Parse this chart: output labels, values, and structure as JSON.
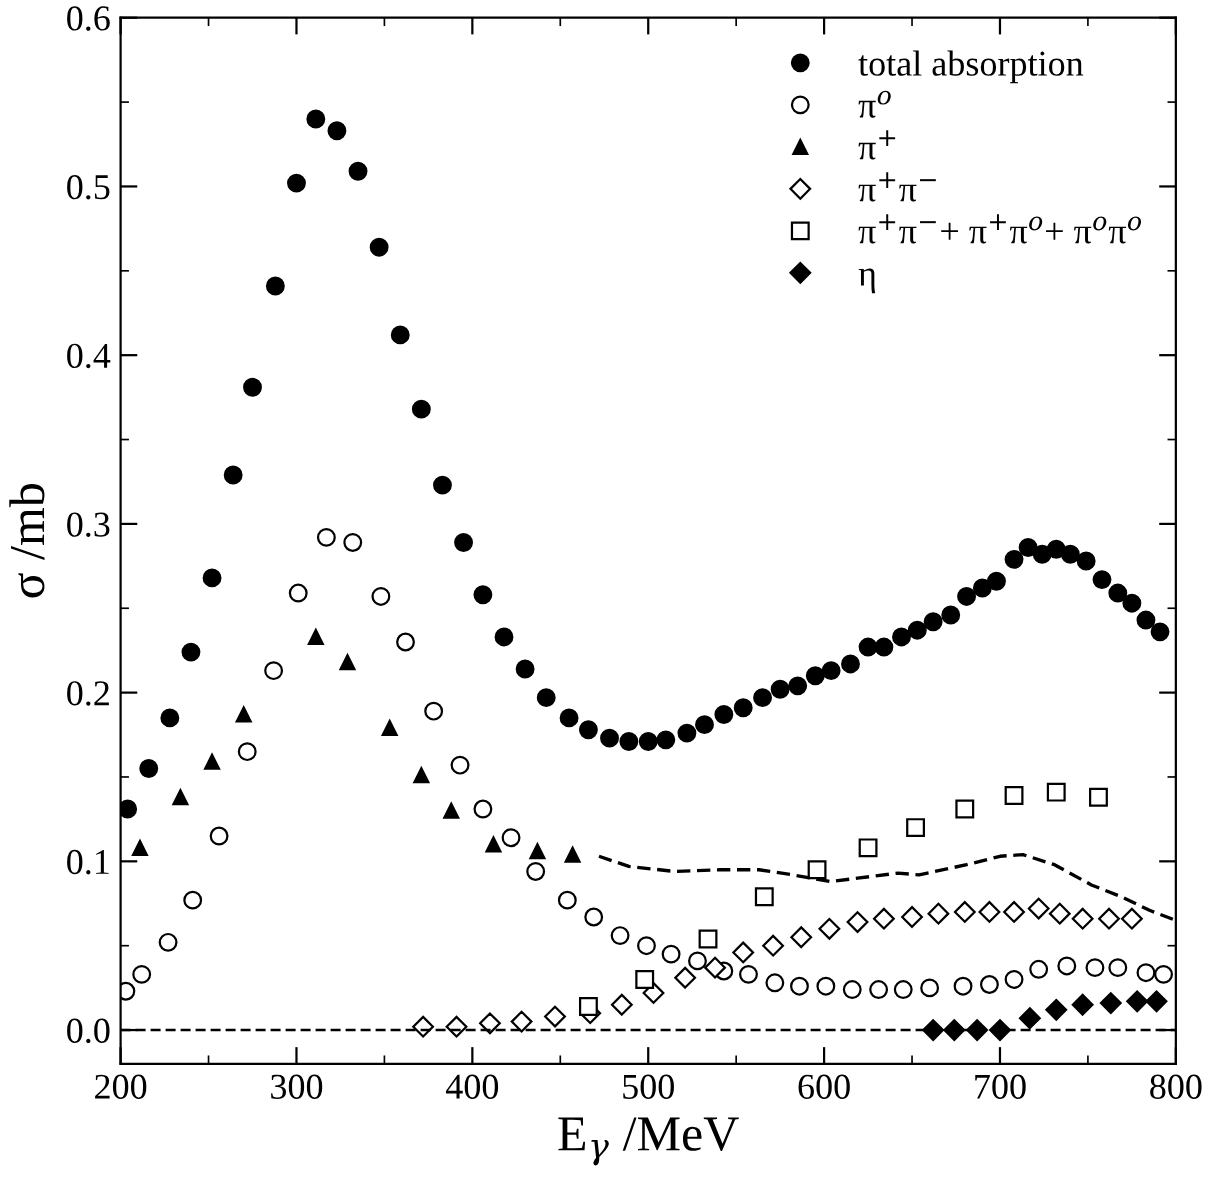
{
  "chart_data": {
    "type": "scatter",
    "xlabel": "E$_{γ}$ /MeV",
    "ylabel": "σ /mb",
    "xlim": [
      200,
      800
    ],
    "xticks": [
      200,
      300,
      400,
      500,
      600,
      700,
      800
    ],
    "ylim": [
      -0.02,
      0.6
    ],
    "yticks": [
      {
        "value": 0,
        "label": "0.0"
      },
      0.1,
      0.2,
      0.3,
      0.4,
      0.5,
      0.6
    ],
    "grid": false,
    "legend": "top right",
    "ref_lines": [
      {
        "axis": "y",
        "value": 0,
        "line_style": "dashed",
        "color": "#000000"
      }
    ],
    "series": [
      {
        "name": "total absorption",
        "color": "#000000",
        "marker": "circle",
        "x": [
          204,
          216,
          228,
          240,
          252,
          264,
          275,
          288,
          300,
          311,
          323,
          335,
          347,
          359,
          371,
          383,
          395,
          406,
          418,
          430,
          442,
          455,
          466,
          478,
          489,
          500,
          510,
          522,
          532,
          543,
          554,
          565,
          575,
          585,
          595,
          604,
          615,
          625,
          634,
          644,
          653,
          662,
          672,
          681,
          690,
          698,
          708,
          716,
          724,
          732,
          740,
          749,
          758,
          767,
          775,
          783,
          791
        ],
        "values": [
          0.131,
          0.155,
          0.185,
          0.224,
          0.268,
          0.329,
          0.381,
          0.441,
          0.502,
          0.54,
          0.533,
          0.509,
          0.464,
          0.412,
          0.368,
          0.323,
          0.289,
          0.258,
          0.233,
          0.214,
          0.197,
          0.185,
          0.178,
          0.173,
          0.171,
          0.171,
          0.172,
          0.176,
          0.181,
          0.187,
          0.191,
          0.197,
          0.202,
          0.204,
          0.21,
          0.213,
          0.217,
          0.227,
          0.227,
          0.233,
          0.237,
          0.242,
          0.246,
          0.257,
          0.262,
          0.266,
          0.279,
          0.286,
          0.282,
          0.285,
          0.282,
          0.278,
          0.267,
          0.259,
          0.253,
          0.243,
          0.236
        ]
      },
      {
        "name": "π$^{o}$",
        "color": "#000000",
        "marker": "circle",
        "x": [
          203,
          212,
          227,
          241,
          256,
          272,
          287,
          301,
          317,
          332,
          348,
          362,
          378,
          393,
          406,
          422,
          436,
          454,
          469,
          484,
          499,
          513,
          528,
          543,
          557,
          572,
          586,
          601,
          616,
          631,
          645,
          660,
          679,
          694,
          708,
          722,
          738,
          754,
          767,
          783,
          793
        ],
        "values": [
          0.023,
          0.033,
          0.052,
          0.077,
          0.115,
          0.165,
          0.213,
          0.259,
          0.292,
          0.289,
          0.257,
          0.23,
          0.189,
          0.157,
          0.131,
          0.114,
          0.094,
          0.077,
          0.067,
          0.056,
          0.05,
          0.045,
          0.041,
          0.035,
          0.033,
          0.028,
          0.026,
          0.026,
          0.024,
          0.024,
          0.024,
          0.025,
          0.026,
          0.027,
          0.03,
          0.036,
          0.038,
          0.037,
          0.037,
          0.034,
          0.033
        ]
      },
      {
        "name": "π$^{+}$",
        "color": "#000000",
        "marker": "triangle",
        "x": [
          211,
          234,
          252,
          270,
          311,
          329,
          353,
          371,
          388,
          412,
          437,
          457
        ],
        "values": [
          0.108,
          0.138,
          0.159,
          0.187,
          0.233,
          0.218,
          0.179,
          0.151,
          0.13,
          0.11,
          0.106,
          0.104
        ]
      },
      {
        "name": "π$^{+}$π$^{−}$",
        "color": "#000000",
        "marker": "diamond",
        "x": [
          372,
          391,
          410,
          428,
          447,
          467,
          485,
          503,
          521,
          538,
          554,
          571,
          587,
          603,
          619,
          634,
          650,
          665,
          680,
          694,
          708,
          722,
          734,
          747,
          762,
          775
        ],
        "values": [
          0.002,
          0.002,
          0.004,
          0.005,
          0.008,
          0.01,
          0.015,
          0.022,
          0.031,
          0.037,
          0.046,
          0.05,
          0.055,
          0.06,
          0.064,
          0.066,
          0.067,
          0.069,
          0.07,
          0.07,
          0.07,
          0.072,
          0.069,
          0.066,
          0.066,
          0.066
        ]
      },
      {
        "name": "π$^{+}$π$^{−}$+ π$^{+}$π$^{o}$+ π$^{o}$π$^{o}$",
        "color": "#000000",
        "marker": "square",
        "x": [
          466,
          498,
          534,
          566,
          596,
          625,
          652,
          680,
          708,
          732,
          756
        ],
        "values": [
          0.014,
          0.03,
          0.054,
          0.079,
          0.095,
          0.108,
          0.12,
          0.131,
          0.139,
          0.141,
          0.138
        ]
      },
      {
        "name": "η",
        "color": "#000000",
        "marker": "diamond",
        "x": [
          662,
          674,
          687,
          700,
          717,
          732,
          747,
          763,
          778,
          789
        ],
        "values": [
          0.0,
          0.0,
          0.0,
          0.0,
          0.007,
          0.012,
          0.015,
          0.016,
          0.017,
          0.017
        ]
      },
      {
        "type": "line",
        "color": "#000000",
        "line_style": "dashed",
        "x": [
          472,
          489,
          515,
          541,
          563,
          582,
          604,
          619,
          642,
          654,
          681,
          700,
          713,
          731,
          752,
          769,
          785,
          800
        ],
        "values": [
          0.103,
          0.097,
          0.094,
          0.095,
          0.095,
          0.092,
          0.088,
          0.09,
          0.093,
          0.092,
          0.098,
          0.103,
          0.104,
          0.098,
          0.086,
          0.079,
          0.071,
          0.065
        ]
      }
    ]
  }
}
